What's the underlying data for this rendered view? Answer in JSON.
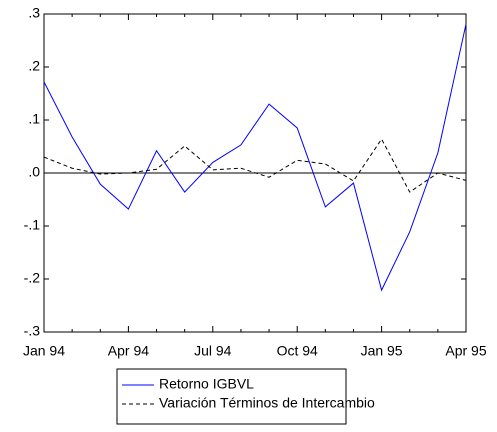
{
  "chart_data": {
    "type": "line",
    "categories": [
      "Jan 94",
      null,
      null,
      "Apr 94",
      null,
      null,
      "Jul 94",
      null,
      null,
      "Oct 94",
      null,
      null,
      "Jan 95",
      null,
      null,
      "Apr 95"
    ],
    "series": [
      {
        "name": "Retorno IGBVL",
        "color": "#0000ff",
        "dash": "solid",
        "values": [
          0.172,
          0.068,
          -0.021,
          -0.068,
          0.042,
          -0.036,
          0.02,
          0.053,
          0.13,
          0.085,
          -0.064,
          -0.019,
          -0.221,
          -0.111,
          0.038,
          0.281
        ]
      },
      {
        "name": "Variación Términos de Intercambio",
        "color": "#000000",
        "dash": "dashed",
        "values": [
          0.03,
          0.009,
          -0.002,
          0.0,
          0.007,
          0.051,
          0.006,
          0.009,
          -0.008,
          0.024,
          0.017,
          -0.015,
          0.064,
          -0.036,
          0.0,
          -0.014
        ]
      }
    ],
    "ylim": [
      -0.3,
      0.3
    ],
    "yticks": [
      {
        "value": -0.3,
        "label": "-.3"
      },
      {
        "value": -0.2,
        "label": "-.2"
      },
      {
        "value": -0.1,
        "label": "-.1"
      },
      {
        "value": 0,
        "label": ".0"
      },
      {
        "value": 0.1,
        "label": ".1"
      },
      {
        "value": 0.2,
        "label": ".2"
      },
      {
        "value": 0.3,
        "label": ".3"
      }
    ],
    "zero_line": true,
    "legend": "bottom"
  }
}
